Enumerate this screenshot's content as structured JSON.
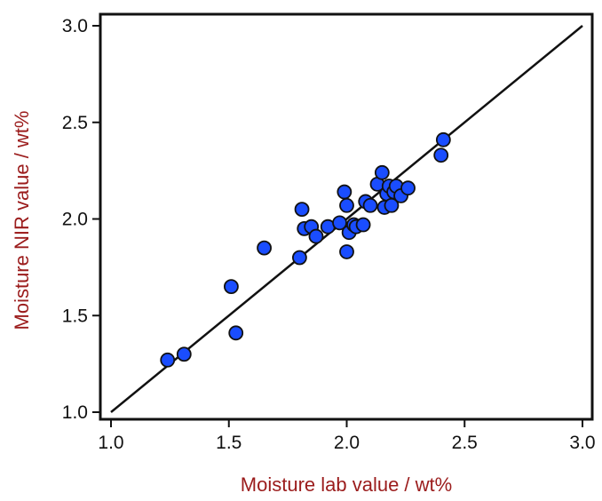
{
  "chart_data": {
    "type": "scatter",
    "title": "",
    "xlabel": "Moisture lab value / wt%",
    "ylabel": "Moisture NIR value / wt%",
    "xlim": [
      1.0,
      3.0
    ],
    "ylim": [
      1.0,
      3.0
    ],
    "x_ticks": [
      "1.0",
      "1.5",
      "2.0",
      "2.5",
      "3.0"
    ],
    "y_ticks": [
      "1.0",
      "1.5",
      "2.0",
      "2.5",
      "3.0"
    ],
    "grid": false,
    "legend": "none",
    "reference_line": {
      "from": [
        1.0,
        1.0
      ],
      "to": [
        3.0,
        3.0
      ]
    },
    "colors": {
      "point_fill": "#1a4dff",
      "point_stroke": "#111111",
      "axis": "#111111",
      "label": "#9b1c1c"
    },
    "series": [
      {
        "points": [
          [
            1.24,
            1.27
          ],
          [
            1.31,
            1.3
          ],
          [
            1.51,
            1.65
          ],
          [
            1.53,
            1.41
          ],
          [
            1.65,
            1.85
          ],
          [
            1.8,
            1.8
          ],
          [
            1.81,
            2.05
          ],
          [
            1.82,
            1.95
          ],
          [
            1.85,
            1.96
          ],
          [
            1.87,
            1.91
          ],
          [
            1.92,
            1.96
          ],
          [
            1.97,
            1.98
          ],
          [
            1.99,
            2.14
          ],
          [
            2.0,
            1.83
          ],
          [
            2.0,
            2.07
          ],
          [
            2.01,
            1.93
          ],
          [
            2.03,
            1.97
          ],
          [
            2.04,
            1.96
          ],
          [
            2.07,
            1.97
          ],
          [
            2.08,
            2.09
          ],
          [
            2.1,
            2.07
          ],
          [
            2.13,
            2.18
          ],
          [
            2.15,
            2.24
          ],
          [
            2.16,
            2.06
          ],
          [
            2.17,
            2.13
          ],
          [
            2.18,
            2.17
          ],
          [
            2.19,
            2.07
          ],
          [
            2.2,
            2.14
          ],
          [
            2.21,
            2.17
          ],
          [
            2.23,
            2.12
          ],
          [
            2.26,
            2.16
          ],
          [
            2.4,
            2.33
          ],
          [
            2.41,
            2.41
          ]
        ]
      }
    ]
  }
}
